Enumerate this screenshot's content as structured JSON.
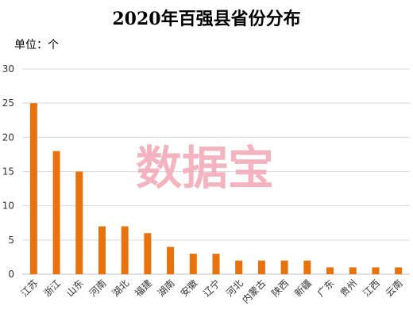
{
  "title": "2020年百强县省份分布",
  "unit_label": "单位：个",
  "watermark": "数据宝",
  "colors": {
    "bar": "#e8720c",
    "grid": "#d9d9d9"
  },
  "chart_data": {
    "type": "bar",
    "categories": [
      "江苏",
      "浙江",
      "山东",
      "河南",
      "湖北",
      "福建",
      "湖南",
      "安徽",
      "辽宁",
      "河北",
      "内蒙古",
      "陕西",
      "新疆",
      "广东",
      "贵州",
      "江西",
      "云南"
    ],
    "values": [
      25,
      18,
      15,
      7,
      7,
      6,
      4,
      3,
      3,
      2,
      2,
      2,
      2,
      1,
      1,
      1,
      1
    ],
    "ylim": [
      0,
      30
    ],
    "yticks": [
      0,
      5,
      10,
      15,
      20,
      25,
      30
    ],
    "grid": true
  }
}
